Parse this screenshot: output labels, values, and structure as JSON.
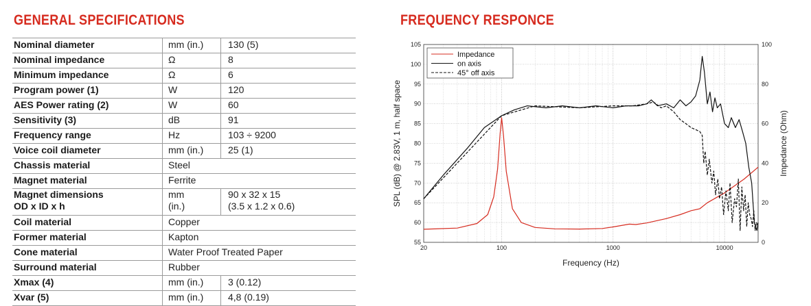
{
  "specs": {
    "title": "GENERAL SPECIFICATIONS",
    "rows": [
      {
        "param": "Nominal diameter",
        "unit": "mm (in.)",
        "value": "130 (5)"
      },
      {
        "param": "Nominal impedance",
        "unit": "Ω",
        "value": "8"
      },
      {
        "param": "Minimum impedance",
        "unit": "Ω",
        "value": "6"
      },
      {
        "param": "Program power (1)",
        "unit": "W",
        "value": "120"
      },
      {
        "param": "AES Power rating (2)",
        "unit": "W",
        "value": "60"
      },
      {
        "param": "Sensitivity (3)",
        "unit": "dB",
        "value": "91"
      },
      {
        "param": "Frequency range",
        "unit": "Hz",
        "value": "103 ÷ 9200"
      },
      {
        "param": "Voice coil diameter",
        "unit": "mm (in.)",
        "value": "25 (1)"
      },
      {
        "param": "Chassis material",
        "unit": "Steel",
        "value": ""
      },
      {
        "param": "Magnet material",
        "unit": "Ferrite",
        "value": ""
      },
      {
        "param": "Magnet dimensions",
        "param2": "OD x ID x h",
        "unit": "mm",
        "unit2": "(in.)",
        "value": "90 x 32 x 15",
        "value2": "(3.5 x 1.2 x 0.6)"
      },
      {
        "param": "Coil material",
        "unit": "Copper",
        "value": ""
      },
      {
        "param": "Former material",
        "unit": "Kapton",
        "value": ""
      },
      {
        "param": "Cone material",
        "unit": "Water Proof Treated Paper",
        "value": ""
      },
      {
        "param": "Surround material",
        "unit": "Rubber",
        "value": ""
      },
      {
        "param": "Xmax (4)",
        "unit": "mm (in.)",
        "value": "3 (0.12)"
      },
      {
        "param": "Xvar (5)",
        "unit": "mm (in.)",
        "value": "4,8 (0.19)"
      }
    ]
  },
  "freq": {
    "title": "FREQUENCY RESPONCE"
  },
  "chart_data": {
    "type": "line",
    "title": "FREQUENCY RESPONCE",
    "xlabel": "Frequency (Hz)",
    "ylabel": "SPL (dB) @ 2.83V, 1 m, half space",
    "y2label": "Impedance (Ohm)",
    "xscale": "log",
    "xlim": [
      20,
      20000
    ],
    "ylim": [
      55,
      105
    ],
    "y2lim": [
      0,
      100
    ],
    "xticks": [
      20,
      100,
      1000,
      10000
    ],
    "xtick_labels": [
      "20",
      "100",
      "1000",
      "10000"
    ],
    "yticks": [
      55,
      60,
      65,
      70,
      75,
      80,
      85,
      90,
      95,
      100,
      105
    ],
    "y2ticks": [
      0,
      20,
      40,
      60,
      80,
      100
    ],
    "legend": {
      "position": "top-left",
      "entries": [
        "Impedance",
        "on axis",
        "45° off axis"
      ]
    },
    "colors": {
      "impedance": "#d62b1f",
      "on_axis": "#111111",
      "off_axis": "#111111"
    },
    "series": [
      {
        "name": "Impedance",
        "axis": "right",
        "style": "solid",
        "color": "#d62b1f",
        "x": [
          20,
          40,
          60,
          75,
          85,
          92,
          97,
          100,
          104,
          110,
          125,
          150,
          200,
          300,
          500,
          800,
          1000,
          1400,
          1600,
          2000,
          3000,
          4000,
          5000,
          6000,
          7000,
          10000,
          15000,
          20000
        ],
        "y": [
          6.6,
          7.2,
          9.5,
          14,
          23,
          37,
          55,
          63,
          54,
          36,
          17,
          10,
          7.5,
          6.8,
          6.7,
          7.0,
          7.8,
          9.2,
          9.0,
          9.8,
          12,
          14,
          16,
          17,
          20,
          25,
          32,
          38
        ]
      },
      {
        "name": "on axis",
        "axis": "left",
        "style": "solid",
        "color": "#111111",
        "x": [
          20,
          30,
          50,
          70,
          100,
          130,
          170,
          250,
          350,
          500,
          700,
          1000,
          1300,
          1700,
          2000,
          2200,
          2500,
          3000,
          3500,
          4000,
          4500,
          5000,
          5500,
          6000,
          6300,
          6600,
          7000,
          7400,
          7800,
          8200,
          8600,
          9200,
          10000,
          10800,
          11500,
          12500,
          13500,
          14500,
          15500,
          16500,
          17500,
          18500,
          19500,
          20000
        ],
        "y": [
          66,
          72,
          79,
          84,
          87,
          88.5,
          89.5,
          89,
          89.5,
          89,
          89.5,
          89,
          89.5,
          89.5,
          90,
          91,
          89.5,
          90,
          89,
          91,
          89.5,
          90.5,
          92,
          96,
          102,
          98,
          90,
          93,
          88,
          91.5,
          89,
          90,
          85,
          84,
          86.5,
          84,
          86,
          83,
          80,
          74,
          70,
          60,
          58,
          60
        ]
      },
      {
        "name": "45° off axis",
        "axis": "left",
        "style": "dashed",
        "color": "#111111",
        "x": [
          20,
          100,
          200,
          500,
          1000,
          1500,
          2000,
          2300,
          2700,
          3000,
          3500,
          4000,
          4500,
          5000,
          5500,
          6000,
          6300,
          6500,
          6700,
          7000,
          7300,
          7700,
          8000,
          8300,
          8700,
          9000,
          9400,
          9800,
          10300,
          10800,
          11200,
          11700,
          12300,
          12800,
          13300,
          13800,
          14300,
          14800,
          15300,
          15800,
          16300,
          16800,
          17300,
          17800,
          18300,
          18800,
          19300,
          20000
        ],
        "y": [
          66,
          87,
          89.5,
          89,
          89.5,
          89.5,
          90,
          90.5,
          89,
          89.5,
          88,
          86,
          85,
          84,
          83.5,
          83,
          82,
          75,
          78,
          72,
          76,
          70,
          73,
          67,
          71,
          66,
          69,
          62,
          68,
          63,
          70,
          60,
          66,
          64,
          71,
          58,
          69,
          63,
          67,
          59,
          65,
          62,
          61,
          59,
          63,
          58,
          60,
          59
        ]
      }
    ]
  }
}
